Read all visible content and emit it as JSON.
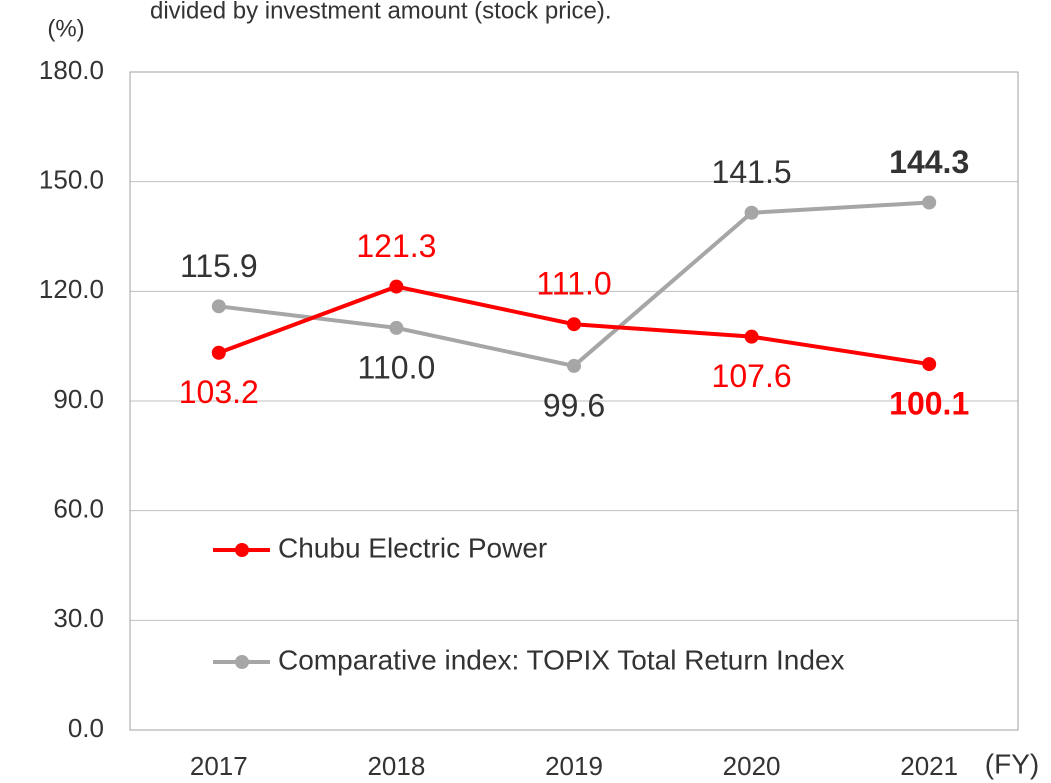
{
  "chart_data": {
    "type": "line",
    "subtitle": "divided by investment amount (stock price).",
    "y_label": "(%)",
    "x_label": "(FY)",
    "categories": [
      "2017",
      "2018",
      "2019",
      "2020",
      "2021"
    ],
    "series": [
      {
        "name": "Chubu Electric Power",
        "color": "#ff0000",
        "values": [
          103.2,
          121.3,
          111.0,
          107.6,
          100.1
        ],
        "value_labels": [
          "103.2",
          "121.3",
          "111.0",
          "107.6",
          "100.1"
        ]
      },
      {
        "name": "Comparative index: TOPIX Total Return Index",
        "color": "#a6a6a6",
        "values": [
          115.9,
          110.0,
          99.6,
          141.5,
          144.3
        ],
        "value_labels": [
          "115.9",
          "110.0",
          "99.6",
          "141.5",
          "144.3"
        ]
      }
    ],
    "ylim": [
      0,
      180
    ],
    "yticks": [
      {
        "value": 0,
        "label": "0.0"
      },
      {
        "value": 30,
        "label": "30.0"
      },
      {
        "value": 60,
        "label": "60.0"
      },
      {
        "value": 90,
        "label": "90.0"
      },
      {
        "value": 120,
        "label": "120.0"
      },
      {
        "value": 150,
        "label": "150.0"
      },
      {
        "value": 180,
        "label": "180.0"
      }
    ],
    "grid": true
  }
}
